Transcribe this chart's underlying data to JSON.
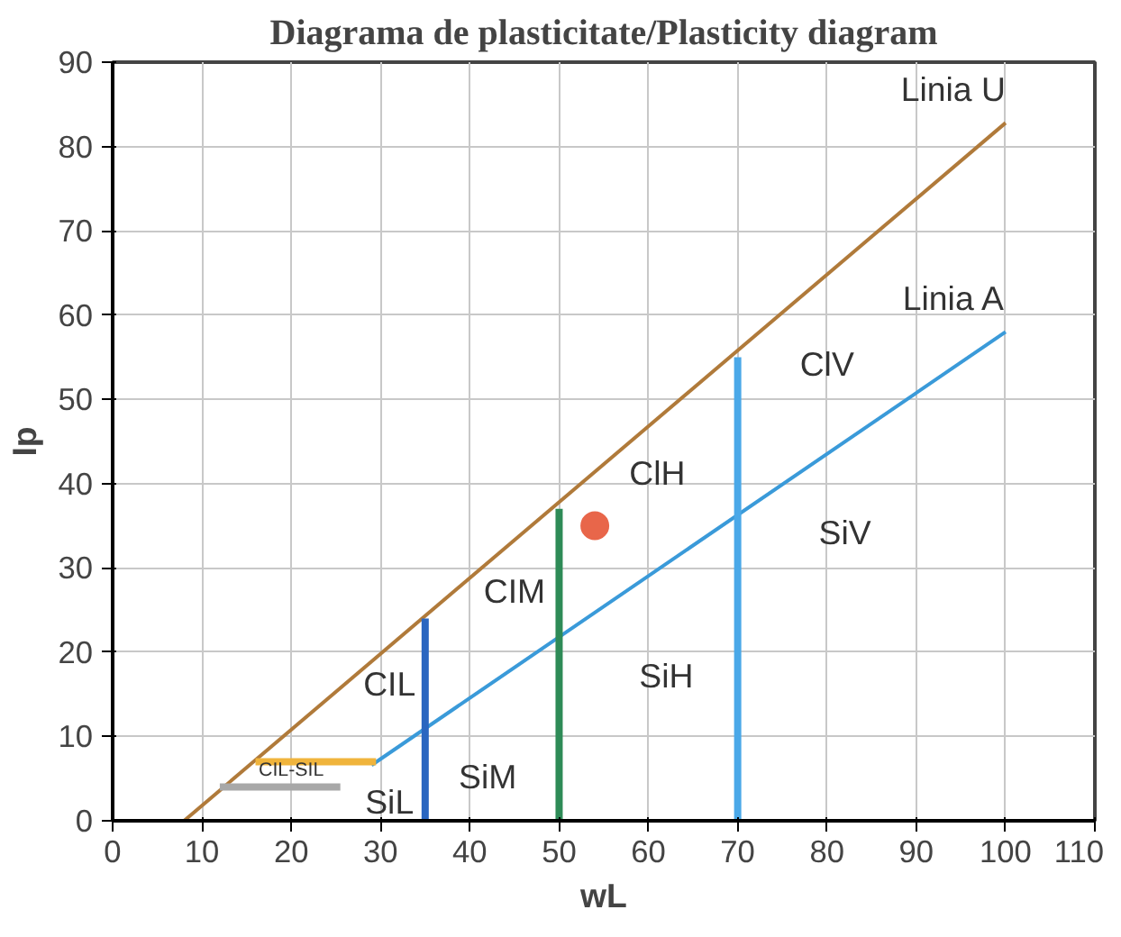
{
  "chart_data": {
    "type": "line",
    "title": "Diagrama de plasticitate/Plasticity diagram",
    "xlabel": "wL",
    "ylabel": "Ip",
    "xlim": [
      0,
      110
    ],
    "ylim": [
      0,
      90
    ],
    "xticks": [
      0,
      10,
      20,
      30,
      40,
      50,
      60,
      70,
      80,
      90,
      100,
      110
    ],
    "yticks": [
      0,
      10,
      20,
      30,
      40,
      50,
      60,
      70,
      80,
      90
    ],
    "grid": true,
    "line_style": "solid",
    "series": [
      {
        "name": "Linia U",
        "color": "#b07a3a",
        "x": [
          8,
          100
        ],
        "values": [
          0,
          82.8
        ]
      },
      {
        "name": "Linia A",
        "color": "#3a9ad9",
        "x": [
          29,
          100
        ],
        "values": [
          6.6,
          58
        ]
      },
      {
        "color": "#a8a8a8",
        "x": [
          12,
          25.5
        ],
        "values": [
          4,
          4
        ]
      },
      {
        "color": "#f0b43c",
        "x": [
          16,
          29.5
        ],
        "values": [
          7,
          7
        ]
      },
      {
        "color": "#2a66c0",
        "x": [
          35,
          35
        ],
        "values": [
          0,
          24
        ]
      },
      {
        "color": "#2e8b57",
        "x": [
          50,
          50
        ],
        "values": [
          0,
          37
        ]
      },
      {
        "color": "#4aa8e8",
        "x": [
          70,
          70
        ],
        "values": [
          0,
          55
        ]
      },
      {
        "type": "scatter",
        "color": "#e8664a",
        "marker": "circle",
        "x": [
          54
        ],
        "values": [
          35
        ]
      }
    ],
    "annotations": [
      "CIL-SIL",
      "SiL",
      "CIL",
      "SiM",
      "CIM",
      "SiH",
      "ClH",
      "SiV",
      "ClV"
    ]
  }
}
